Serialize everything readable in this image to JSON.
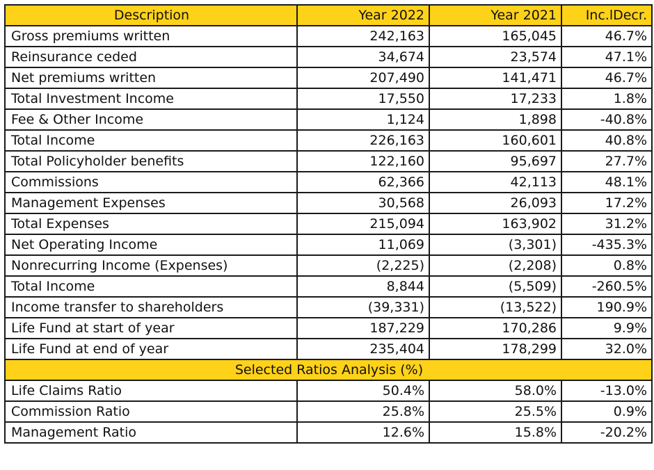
{
  "header": {
    "description": "Description",
    "year_2022": "Year 2022",
    "year_2021": "Year 2021",
    "change": "Inc.lDecr."
  },
  "rows": [
    {
      "label": "Gross premiums written",
      "y2022": "242,163",
      "y2021": "165,045",
      "change": "46.7%"
    },
    {
      "label": "Reinsurance ceded",
      "y2022": "34,674",
      "y2021": "23,574",
      "change": "47.1%"
    },
    {
      "label": "Net premiums written",
      "y2022": "207,490",
      "y2021": "141,471",
      "change": "46.7%"
    },
    {
      "label": "Total Investment Income",
      "y2022": "17,550",
      "y2021": "17,233",
      "change": "1.8%"
    },
    {
      "label": "Fee & Other Income",
      "y2022": "1,124",
      "y2021": "1,898",
      "change": "-40.8%"
    },
    {
      "label": "Total Income",
      "y2022": "226,163",
      "y2021": "160,601",
      "change": "40.8%"
    },
    {
      "label": "Total Policyholder benefits",
      "y2022": "122,160",
      "y2021": "95,697",
      "change": "27.7%"
    },
    {
      "label": "Commissions",
      "y2022": "62,366",
      "y2021": "42,113",
      "change": "48.1%"
    },
    {
      "label": "Management Expenses",
      "y2022": "30,568",
      "y2021": "26,093",
      "change": "17.2%"
    },
    {
      "label": "Total Expenses",
      "y2022": "215,094",
      "y2021": "163,902",
      "change": "31.2%"
    },
    {
      "label": "Net Operating Income",
      "y2022": "11,069",
      "y2021": "(3,301)",
      "change": "-435.3%"
    },
    {
      "label": "Nonrecurring Income (Expenses)",
      "y2022": "(2,225)",
      "y2021": "(2,208)",
      "change": "0.8%"
    },
    {
      "label": "Total Income",
      "y2022": "8,844",
      "y2021": "(5,509)",
      "change": "-260.5%"
    },
    {
      "label": "Income transfer to shareholders",
      "y2022": "(39,331)",
      "y2021": "(13,522)",
      "change": "190.9%"
    },
    {
      "label": "Life Fund at start of year",
      "y2022": "187,229",
      "y2021": "170,286",
      "change": "9.9%"
    },
    {
      "label": "Life Fund at end of year",
      "y2022": "235,404",
      "y2021": "178,299",
      "change": "32.0%"
    }
  ],
  "section_title": "Selected Ratios Analysis (%)",
  "ratios": [
    {
      "label": "Life Claims Ratio",
      "y2022": "50.4%",
      "y2021": "58.0%",
      "change": "-13.0%"
    },
    {
      "label": "Commission Ratio",
      "y2022": "25.8%",
      "y2021": "25.5%",
      "change": "0.9%"
    },
    {
      "label": "Management Ratio",
      "y2022": "12.6%",
      "y2021": "15.8%",
      "change": "-20.2%"
    }
  ],
  "colors": {
    "header_fill": "#ffd21a",
    "border": "#1a1a1a"
  }
}
